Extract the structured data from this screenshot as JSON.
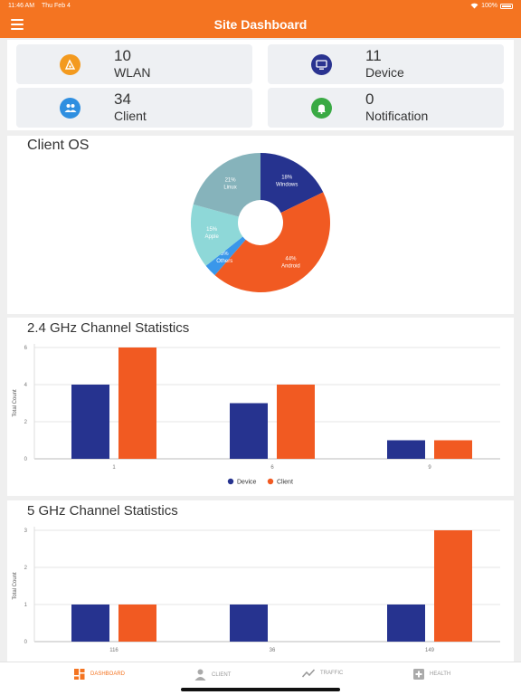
{
  "status_bar": {
    "time": "11:46 AM",
    "date": "Thu Feb 4",
    "battery": "100%"
  },
  "header": {
    "title": "Site Dashboard",
    "menu_icon": "hamburger-menu-icon"
  },
  "stats": [
    {
      "value": "10",
      "label": "WLAN",
      "icon": "wifi-icon",
      "color": "#f39a1f"
    },
    {
      "value": "11",
      "label": "Device",
      "icon": "device-icon",
      "color": "#2a3390"
    },
    {
      "value": "34",
      "label": "Client",
      "icon": "users-icon",
      "color": "#2f8fe0"
    },
    {
      "value": "0",
      "label": "Notification",
      "icon": "bell-icon",
      "color": "#3aaa44"
    }
  ],
  "client_os": {
    "title": "Client OS",
    "chart_data": {
      "type": "pie",
      "slices": [
        {
          "pct": "18%",
          "name": "Windows",
          "value": 18,
          "color": "#26338f"
        },
        {
          "pct": "44%",
          "name": "Android",
          "value": 44,
          "color": "#f15a22"
        },
        {
          "pct": "3%",
          "name": "Others",
          "value": 3,
          "color": "#3a97ea"
        },
        {
          "pct": "15%",
          "name": "Apple",
          "value": 15,
          "color": "#8ed8d8"
        },
        {
          "pct": "21%",
          "name": "Linux",
          "value": 21,
          "color": "#86b3bb"
        }
      ]
    }
  },
  "ch24": {
    "title": "2.4 GHz Channel Statistics",
    "chart_data": {
      "type": "bar",
      "categories": [
        "1",
        "6",
        "9"
      ],
      "series": [
        {
          "name": "Device",
          "values": [
            4,
            3,
            1
          ],
          "color": "#26338f"
        },
        {
          "name": "Client",
          "values": [
            6,
            4,
            1
          ],
          "color": "#f15a22"
        }
      ],
      "ylabel": "Total Count",
      "ylim": [
        0,
        6
      ],
      "yticks": [
        "0",
        "2",
        "4",
        "6"
      ],
      "grid": true
    }
  },
  "ch5": {
    "title": "5 GHz Channel Statistics",
    "chart_data": {
      "type": "bar",
      "categories": [
        "116",
        "36",
        "149"
      ],
      "series": [
        {
          "name": "Device",
          "values": [
            1,
            1,
            1
          ],
          "color": "#26338f"
        },
        {
          "name": "Client",
          "values": [
            1,
            0,
            3
          ],
          "color": "#f15a22"
        }
      ],
      "ylabel": "Total Count",
      "ylim": [
        0,
        3
      ],
      "yticks": [
        "0",
        "1",
        "2",
        "3"
      ],
      "grid": true
    }
  },
  "tabs": [
    {
      "label": "DASHBOARD",
      "icon": "dashboard-icon",
      "active": true
    },
    {
      "label": "CLIENT",
      "icon": "person-icon",
      "active": false
    },
    {
      "label": "TRAFFIC",
      "icon": "trend-icon",
      "active": false
    },
    {
      "label": "HEALTH",
      "icon": "health-plus-icon",
      "active": false
    }
  ]
}
